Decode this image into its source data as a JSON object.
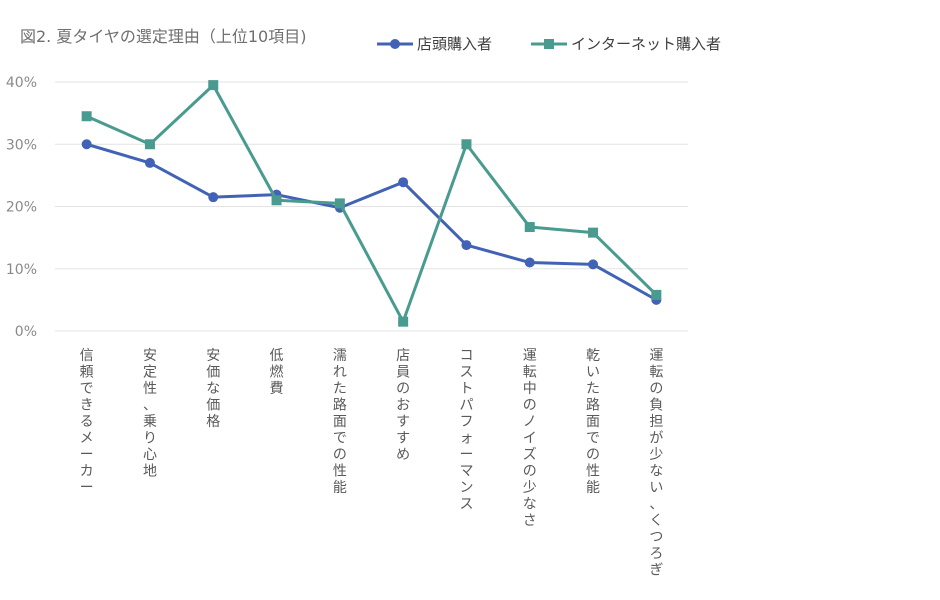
{
  "chart_data": {
    "type": "line",
    "title": "図2. 夏タイヤの選定理由（上位10項目)",
    "categories": [
      "信頼できるメーカー",
      "安定性、乗り心地",
      "安価な価格",
      "低燃費",
      "濡れた路面での性能",
      "店員のおすすめ",
      "コストパフォーマンス",
      "運転中のノイズの少なさ",
      "乾いた路面での性能",
      "運転の負担が少ない、くつろぎ"
    ],
    "series": [
      {
        "name": "店頭購入者",
        "color": "#4262b6",
        "marker": "circle",
        "values": [
          30.0,
          27.0,
          21.5,
          21.9,
          19.8,
          23.9,
          13.8,
          11.0,
          10.7,
          5.0
        ]
      },
      {
        "name": "インターネット購入者",
        "color": "#4a9b8f",
        "marker": "square",
        "values": [
          34.5,
          30.0,
          39.5,
          21.0,
          20.5,
          1.5,
          30.0,
          16.7,
          15.8,
          5.8
        ]
      }
    ],
    "ylim": [
      0,
      40
    ],
    "yticks": [
      0,
      10,
      20,
      30,
      40
    ],
    "ytick_labels": [
      "0%",
      "10%",
      "20%",
      "30%",
      "40%"
    ],
    "grid": true,
    "legend_position": "top-right"
  }
}
